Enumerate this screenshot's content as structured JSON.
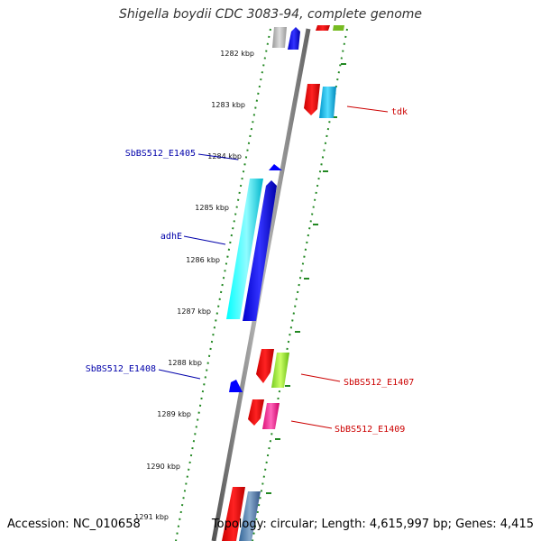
{
  "title": "Shigella boydii CDC 3083-94, complete genome",
  "footer": {
    "accession": "Accession: NC_010658",
    "stats": "Topology: circular; Length: 4,615,997 bp; Genes: 4,415"
  },
  "colors": {
    "backbone": "#888888",
    "ruler_dots": "#228822",
    "forward_label": "#cc0000",
    "reverse_label": "#0000aa"
  },
  "ruler": [
    "1282 kbp",
    "1283 kbp",
    "1284 kbp",
    "1285 kbp",
    "1286 kbp",
    "1287 kbp",
    "1288 kbp",
    "1289 kbp",
    "1290 kbp",
    "1291 kbp"
  ],
  "labels": {
    "tdk": "tdk",
    "SbBS512_E1405": "SbBS512_E1405",
    "adhE": "adhE",
    "SbBS512_E1408": "SbBS512_E1408",
    "SbBS512_E1407": "SbBS512_E1407",
    "SbBS512_E1409": "SbBS512_E1409"
  },
  "feature_colors": [
    "#aaaaaa",
    "#0000ff",
    "#ff0000",
    "#00ccee",
    "#00ffff",
    "#99ff33",
    "#ff3399",
    "#4488bb"
  ]
}
